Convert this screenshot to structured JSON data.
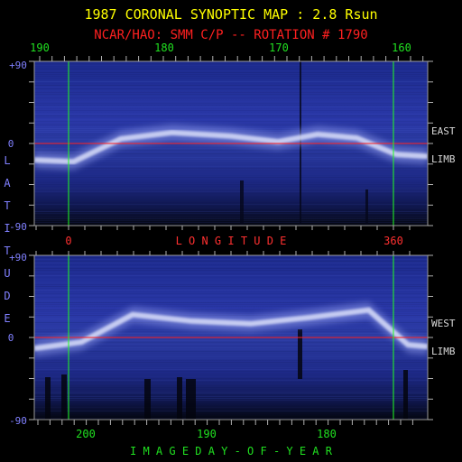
{
  "chart_data": {
    "type": "heatmap",
    "title": "1987 CORONAL SYNOPTIC MAP : 2.8 Rsun",
    "subtitle": "NCAR/HAO: SMM C/P -- ROTATION # 1790",
    "colors": {
      "title": "#ffff00",
      "subtitle": "#ff2020",
      "top_ticks": "#20e020",
      "middle_labels": "#ff3030",
      "y_ticks": "#8080ff",
      "side_labels": "#d8d8d8",
      "bottom_label": "#20e020",
      "equator_line": "#ff2020",
      "boundary_line": "#20ff20",
      "background": "#000000",
      "map_low": "#0a1040",
      "map_high": "#e8ecff"
    },
    "top_axis": {
      "ticks": [
        "190",
        "180",
        "170",
        "160"
      ]
    },
    "middle_axis": {
      "label": "L O N G I T U D E",
      "ticks": [
        "0",
        "360"
      ]
    },
    "bottom_axis": {
      "label": "I M A G E   D A Y - O F - Y E A R",
      "ticks": [
        "200",
        "190",
        "180"
      ]
    },
    "y_axis": {
      "label_letters": [
        "L",
        "A",
        "T",
        "I",
        "T",
        "U",
        "D",
        "E"
      ],
      "ticks": [
        "+90",
        "0",
        "-90"
      ],
      "range": [
        -90,
        90
      ]
    },
    "panels": [
      {
        "name": "east-limb",
        "side_label": [
          "EAST",
          "LIMB"
        ],
        "streamer_band": [
          {
            "pos": 0.0,
            "lat": -18
          },
          {
            "pos": 0.1,
            "lat": -20
          },
          {
            "pos": 0.22,
            "lat": 5
          },
          {
            "pos": 0.35,
            "lat": 12
          },
          {
            "pos": 0.5,
            "lat": 8
          },
          {
            "pos": 0.62,
            "lat": 2
          },
          {
            "pos": 0.72,
            "lat": 10
          },
          {
            "pos": 0.82,
            "lat": 6
          },
          {
            "pos": 0.92,
            "lat": -12
          },
          {
            "pos": 1.0,
            "lat": -14
          }
        ]
      },
      {
        "name": "west-limb",
        "side_label": [
          "WEST",
          "LIMB"
        ],
        "streamer_band": [
          {
            "pos": 0.0,
            "lat": -12
          },
          {
            "pos": 0.12,
            "lat": -5
          },
          {
            "pos": 0.25,
            "lat": 25
          },
          {
            "pos": 0.4,
            "lat": 18
          },
          {
            "pos": 0.55,
            "lat": 15
          },
          {
            "pos": 0.7,
            "lat": 22
          },
          {
            "pos": 0.85,
            "lat": 30
          },
          {
            "pos": 0.95,
            "lat": -8
          },
          {
            "pos": 1.0,
            "lat": -10
          }
        ]
      }
    ]
  }
}
